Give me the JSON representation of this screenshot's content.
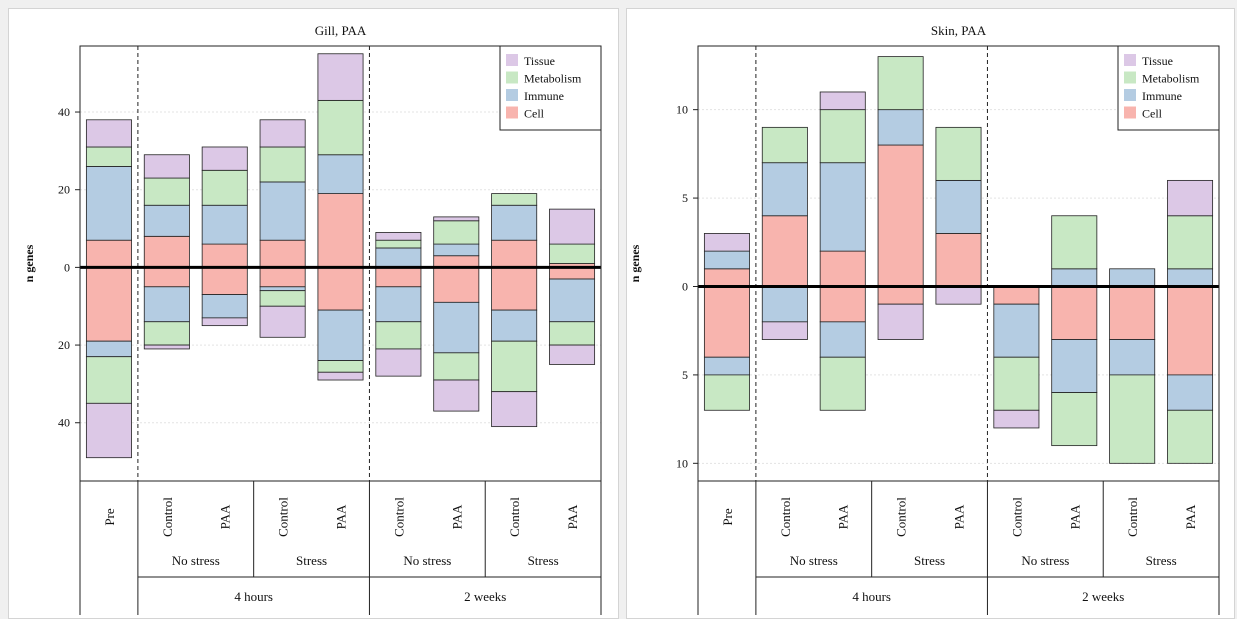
{
  "colors": {
    "Tissue": "#dcc8e6",
    "Metabolism": "#c8e8c4",
    "Immune": "#b4cce2",
    "Cell": "#f8b4ae"
  },
  "chart_data": [
    {
      "type": "bar",
      "title": "Gill, PAA",
      "ylabel": "n genes",
      "ylim": [
        -55,
        57
      ],
      "yticks": [
        -40,
        -20,
        0,
        20,
        40
      ],
      "ytick_labels": [
        "40",
        "20",
        "0",
        "20",
        "40"
      ],
      "grid": true,
      "legend_position": "top-right",
      "legend": [
        "Tissue",
        "Metabolism",
        "Immune",
        "Cell"
      ],
      "categories": [
        "Pre",
        "Control",
        "PAA",
        "Control",
        "PAA",
        "Control",
        "PAA",
        "Control",
        "PAA"
      ],
      "group_level1": [
        {
          "label": "No stress",
          "span": [
            1,
            2
          ]
        },
        {
          "label": "Stress",
          "span": [
            3,
            4
          ]
        },
        {
          "label": "No stress",
          "span": [
            5,
            6
          ]
        },
        {
          "label": "Stress",
          "span": [
            7,
            8
          ]
        }
      ],
      "group_level2": [
        {
          "label": "4 hours",
          "span": [
            1,
            4
          ]
        },
        {
          "label": "2 weeks",
          "span": [
            5,
            8
          ]
        }
      ],
      "separators_after": [
        0,
        4
      ],
      "up": {
        "Cell": [
          7,
          8,
          6,
          7,
          19,
          0,
          3,
          7,
          1
        ],
        "Immune": [
          19,
          8,
          10,
          15,
          10,
          5,
          3,
          9,
          0
        ],
        "Metabolism": [
          5,
          7,
          9,
          9,
          14,
          2,
          6,
          3,
          5
        ],
        "Tissue": [
          7,
          6,
          6,
          7,
          12,
          2,
          1,
          0,
          9
        ]
      },
      "down": {
        "Cell": [
          19,
          5,
          7,
          5,
          11,
          5,
          9,
          11,
          3
        ],
        "Immune": [
          4,
          9,
          6,
          1,
          13,
          9,
          13,
          8,
          11
        ],
        "Metabolism": [
          12,
          6,
          0,
          4,
          3,
          7,
          7,
          13,
          6
        ],
        "Tissue": [
          14,
          1,
          2,
          8,
          2,
          7,
          8,
          9,
          5
        ]
      }
    },
    {
      "type": "bar",
      "title": "Skin, PAA",
      "ylabel": "n genes",
      "ylim": [
        -11,
        13.6
      ],
      "yticks": [
        -10,
        -5,
        0,
        5,
        10
      ],
      "ytick_labels": [
        "10",
        "5",
        "0",
        "5",
        "10"
      ],
      "grid": true,
      "legend_position": "top-right",
      "legend": [
        "Tissue",
        "Metabolism",
        "Immune",
        "Cell"
      ],
      "categories": [
        "Pre",
        "Control",
        "PAA",
        "Control",
        "PAA",
        "Control",
        "PAA",
        "Control",
        "PAA"
      ],
      "group_level1": [
        {
          "label": "No stress",
          "span": [
            1,
            2
          ]
        },
        {
          "label": "Stress",
          "span": [
            3,
            4
          ]
        },
        {
          "label": "No stress",
          "span": [
            5,
            6
          ]
        },
        {
          "label": "Stress",
          "span": [
            7,
            8
          ]
        }
      ],
      "group_level2": [
        {
          "label": "4 hours",
          "span": [
            1,
            4
          ]
        },
        {
          "label": "2 weeks",
          "span": [
            5,
            8
          ]
        }
      ],
      "separators_after": [
        0,
        4
      ],
      "up": {
        "Cell": [
          1,
          4,
          2,
          8,
          3,
          0,
          0,
          0,
          0
        ],
        "Immune": [
          1,
          3,
          5,
          2,
          3,
          0,
          1,
          1,
          1
        ],
        "Metabolism": [
          0,
          2,
          3,
          3,
          3,
          0,
          3,
          0,
          3
        ],
        "Tissue": [
          1,
          0,
          1,
          0,
          0,
          0,
          0,
          0,
          2
        ]
      },
      "down": {
        "Cell": [
          4,
          0,
          2,
          1,
          0,
          1,
          3,
          3,
          5
        ],
        "Immune": [
          1,
          2,
          2,
          0,
          0,
          3,
          3,
          2,
          2
        ],
        "Metabolism": [
          2,
          0,
          3,
          0,
          0,
          3,
          3,
          5,
          3
        ],
        "Tissue": [
          0,
          1,
          0,
          2,
          1,
          1,
          0,
          0,
          0
        ]
      }
    }
  ]
}
